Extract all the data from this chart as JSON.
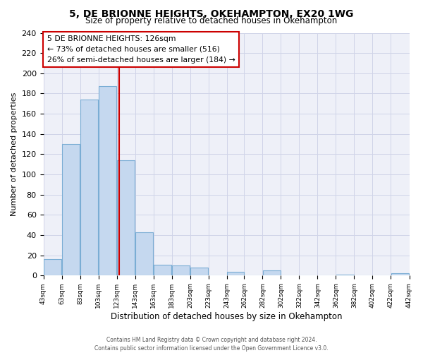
{
  "title": "5, DE BRIONNE HEIGHTS, OKEHAMPTON, EX20 1WG",
  "subtitle": "Size of property relative to detached houses in Okehampton",
  "xlabel": "Distribution of detached houses by size in Okehampton",
  "ylabel": "Number of detached properties",
  "bar_edges": [
    43,
    63,
    83,
    103,
    123,
    143,
    163,
    183,
    203,
    223,
    243,
    262,
    282,
    302,
    322,
    342,
    362,
    382,
    402,
    422,
    442
  ],
  "bar_heights": [
    16,
    130,
    174,
    187,
    114,
    43,
    11,
    10,
    8,
    0,
    4,
    0,
    5,
    0,
    0,
    0,
    1,
    0,
    0,
    2
  ],
  "bar_color": "#c5d8ef",
  "bar_edgecolor": "#7aadd4",
  "vline_x": 126,
  "vline_color": "#cc0000",
  "annotation_title": "5 DE BRIONNE HEIGHTS: 126sqm",
  "annotation_line1": "← 73% of detached houses are smaller (516)",
  "annotation_line2": "26% of semi-detached houses are larger (184) →",
  "annotation_box_facecolor": "#ffffff",
  "annotation_box_edgecolor": "#cc0000",
  "ylim": [
    0,
    240
  ],
  "yticks": [
    0,
    20,
    40,
    60,
    80,
    100,
    120,
    140,
    160,
    180,
    200,
    220,
    240
  ],
  "tick_labels": [
    "43sqm",
    "63sqm",
    "83sqm",
    "103sqm",
    "123sqm",
    "143sqm",
    "163sqm",
    "183sqm",
    "203sqm",
    "223sqm",
    "243sqm",
    "262sqm",
    "282sqm",
    "302sqm",
    "322sqm",
    "342sqm",
    "362sqm",
    "382sqm",
    "402sqm",
    "422sqm",
    "442sqm"
  ],
  "grid_color": "#d0d4e8",
  "bg_color": "#eef0f8",
  "footer_line1": "Contains HM Land Registry data © Crown copyright and database right 2024.",
  "footer_line2": "Contains public sector information licensed under the Open Government Licence v3.0."
}
